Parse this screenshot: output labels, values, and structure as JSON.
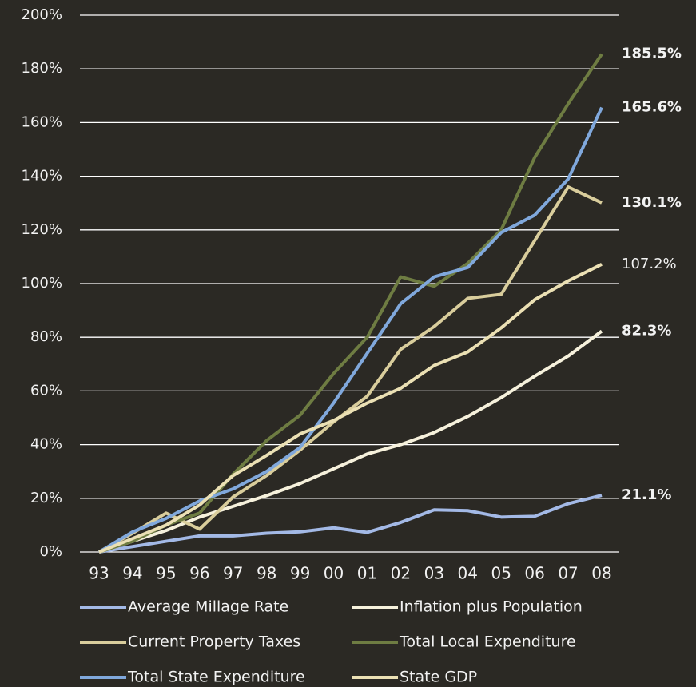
{
  "chart_data": {
    "type": "line",
    "categories": [
      "93",
      "94",
      "95",
      "96",
      "97",
      "98",
      "99",
      "00",
      "01",
      "02",
      "03",
      "04",
      "05",
      "06",
      "07",
      "08"
    ],
    "ylim": [
      0,
      200
    ],
    "yticks": [
      {
        "value": 0,
        "label": "0%"
      },
      {
        "value": 20,
        "label": "20%"
      },
      {
        "value": 40,
        "label": "40%"
      },
      {
        "value": 60,
        "label": "60%"
      },
      {
        "value": 80,
        "label": "80%"
      },
      {
        "value": 100,
        "label": "100%"
      },
      {
        "value": 120,
        "label": "120%"
      },
      {
        "value": 140,
        "label": "140%"
      },
      {
        "value": 160,
        "label": "160%"
      },
      {
        "value": 180,
        "label": "180%"
      },
      {
        "value": 200,
        "label": "200%"
      }
    ],
    "grid": true,
    "legend": "bottom",
    "series": [
      {
        "name": "Average Millage Rate",
        "color": "#a3b9e6",
        "label_weight": "bold",
        "values": [
          0,
          2,
          4,
          6,
          6,
          7,
          7.5,
          9,
          7.3,
          11,
          15.7,
          15.4,
          13,
          13.3,
          18,
          21.1
        ],
        "value_labels": [
          null,
          null,
          null,
          null,
          null,
          null,
          null,
          null,
          null,
          null,
          null,
          null,
          null,
          null,
          null,
          "21.1%"
        ]
      },
      {
        "name": "Inflation plus Population",
        "color": "#f6f1dc",
        "label_weight": "bold",
        "values": [
          0,
          4,
          8,
          13,
          17,
          21,
          25.5,
          31,
          36.5,
          40,
          44.5,
          50.5,
          57.5,
          65.5,
          73,
          82.3
        ],
        "value_labels": [
          null,
          null,
          null,
          null,
          null,
          null,
          null,
          null,
          null,
          null,
          null,
          null,
          null,
          null,
          null,
          "82.3%"
        ]
      },
      {
        "name": "Current Property Taxes",
        "color": "#d9cd9c",
        "label_weight": "bold",
        "values": [
          0,
          7,
          14.5,
          8.5,
          20.5,
          28.5,
          38,
          48.5,
          58,
          75.5,
          84,
          94.5,
          96,
          116,
          136,
          130.1
        ],
        "value_labels": [
          null,
          null,
          null,
          null,
          null,
          null,
          null,
          null,
          null,
          null,
          null,
          null,
          null,
          null,
          null,
          "130.1%"
        ]
      },
      {
        "name": "Total Local Expenditure",
        "color": "#6e7c42",
        "label_weight": "bold",
        "values": [
          0,
          4,
          10,
          14.5,
          29,
          41.5,
          51,
          66.5,
          80,
          102.5,
          99,
          107.5,
          120,
          147,
          167,
          185.5
        ],
        "value_labels": [
          null,
          null,
          null,
          null,
          null,
          null,
          null,
          null,
          null,
          null,
          null,
          null,
          null,
          null,
          null,
          "185.5%"
        ]
      },
      {
        "name": "Total State Expenditure",
        "color": "#80a8dc",
        "label_weight": "bold",
        "values": [
          0,
          7.5,
          12.5,
          19,
          23.5,
          30,
          39,
          55.5,
          74,
          92.5,
          102.5,
          106,
          119,
          125.5,
          139,
          165.6
        ],
        "value_labels": [
          null,
          null,
          null,
          null,
          null,
          null,
          null,
          null,
          null,
          null,
          null,
          null,
          null,
          null,
          null,
          "165.6%"
        ]
      },
      {
        "name": "State GDP",
        "color": "#ebe0b4",
        "label_weight": "normal",
        "values": [
          0,
          5,
          10,
          17.5,
          28.5,
          36,
          44,
          49,
          55.5,
          61,
          69.5,
          74.5,
          83.5,
          94,
          101,
          107.2
        ],
        "value_labels": [
          null,
          null,
          null,
          null,
          null,
          null,
          null,
          null,
          null,
          null,
          null,
          null,
          null,
          null,
          null,
          "107.2%"
        ]
      }
    ]
  }
}
